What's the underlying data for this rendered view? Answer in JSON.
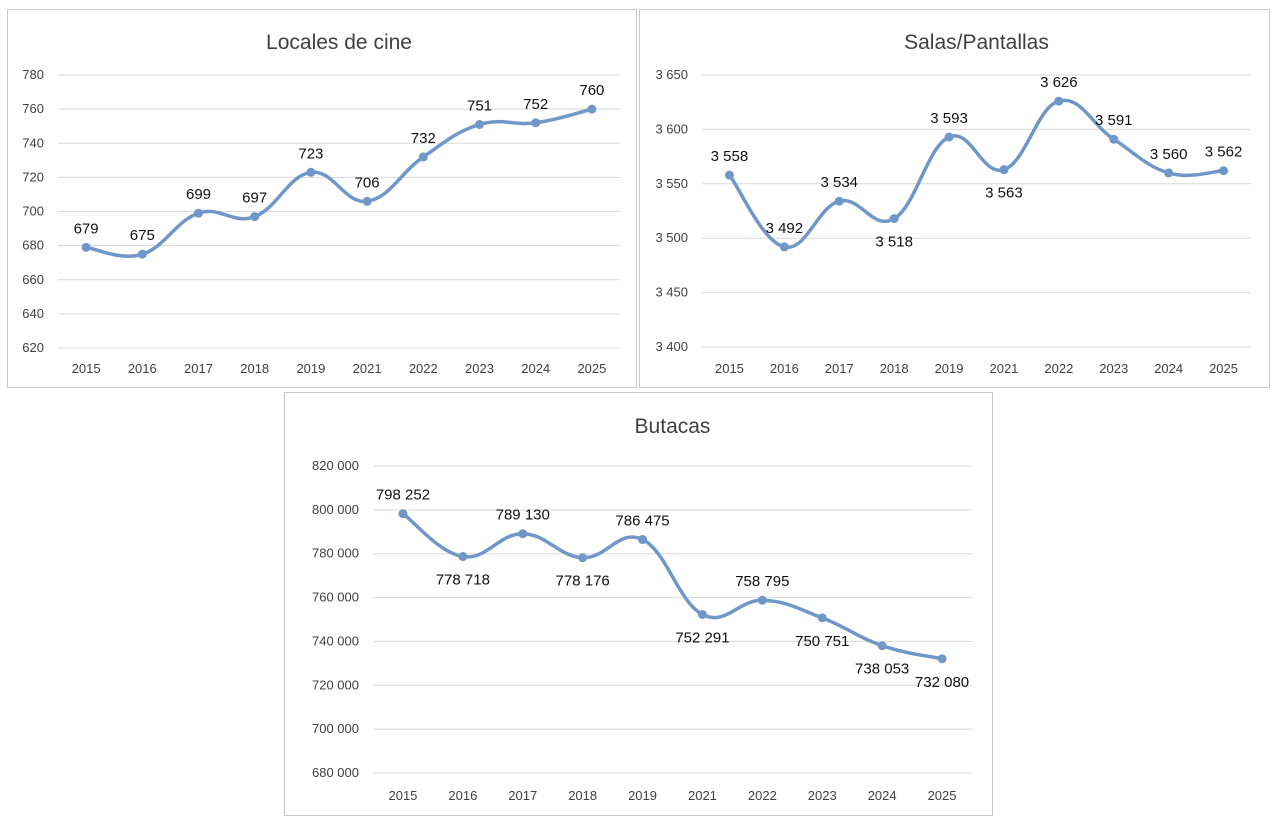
{
  "chart_data": [
    {
      "type": "line",
      "title": "Locales de cine",
      "categories": [
        "2015",
        "2016",
        "2017",
        "2018",
        "2019",
        "2021",
        "2022",
        "2023",
        "2024",
        "2025"
      ],
      "values": [
        679,
        675,
        699,
        697,
        723,
        706,
        732,
        751,
        752,
        760
      ],
      "value_labels": [
        "679",
        "675",
        "699",
        "697",
        "723",
        "706",
        "732",
        "751",
        "752",
        "760"
      ],
      "ylim": [
        620,
        780
      ],
      "yticks": [
        620,
        640,
        660,
        680,
        700,
        720,
        740,
        760,
        780
      ],
      "ytick_labels": [
        "620",
        "640",
        "660",
        "680",
        "700",
        "720",
        "740",
        "760",
        "780"
      ],
      "label_positions": [
        "above",
        "above",
        "above",
        "above",
        "above",
        "above",
        "above",
        "above",
        "above",
        "above"
      ],
      "grid": true,
      "smooth": true,
      "color": "#6f97c8"
    },
    {
      "type": "line",
      "title": "Salas/Pantallas",
      "categories": [
        "2015",
        "2016",
        "2017",
        "2018",
        "2019",
        "2021",
        "2022",
        "2023",
        "2024",
        "2025"
      ],
      "values": [
        3558,
        3492,
        3534,
        3518,
        3593,
        3563,
        3626,
        3591,
        3560,
        3562
      ],
      "value_labels": [
        "3 558",
        "3 492",
        "3 534",
        "3 518",
        "3 593",
        "3 563",
        "3 626",
        "3 591",
        "3 560",
        "3 562"
      ],
      "ylim": [
        3400,
        3650
      ],
      "yticks": [
        3400,
        3450,
        3500,
        3550,
        3600,
        3650
      ],
      "ytick_labels": [
        "3 400",
        "3 450",
        "3 500",
        "3 550",
        "3 600",
        "3 650"
      ],
      "label_positions": [
        "above",
        "above",
        "above",
        "below",
        "above",
        "below",
        "above",
        "above",
        "above",
        "above"
      ],
      "grid": true,
      "smooth": true,
      "color": "#6f97c8"
    },
    {
      "type": "line",
      "title": "Butacas",
      "categories": [
        "2015",
        "2016",
        "2017",
        "2018",
        "2019",
        "2021",
        "2022",
        "2023",
        "2024",
        "2025"
      ],
      "values": [
        798252,
        778718,
        789130,
        778176,
        786475,
        752291,
        758795,
        750751,
        738053,
        732080
      ],
      "value_labels": [
        "798 252",
        "778 718",
        "789 130",
        "778 176",
        "786 475",
        "752 291",
        "758 795",
        "750 751",
        "738 053",
        "732 080"
      ],
      "ylim": [
        680000,
        820000
      ],
      "yticks": [
        680000,
        700000,
        720000,
        740000,
        760000,
        780000,
        800000,
        820000
      ],
      "ytick_labels": [
        "680 000",
        "700 000",
        "720 000",
        "740 000",
        "760 000",
        "780 000",
        "800 000",
        "820 000"
      ],
      "label_positions": [
        "above",
        "below",
        "above",
        "below",
        "above",
        "below",
        "above",
        "below",
        "below",
        "below"
      ],
      "grid": true,
      "smooth": true,
      "color": "#6f97c8"
    }
  ]
}
